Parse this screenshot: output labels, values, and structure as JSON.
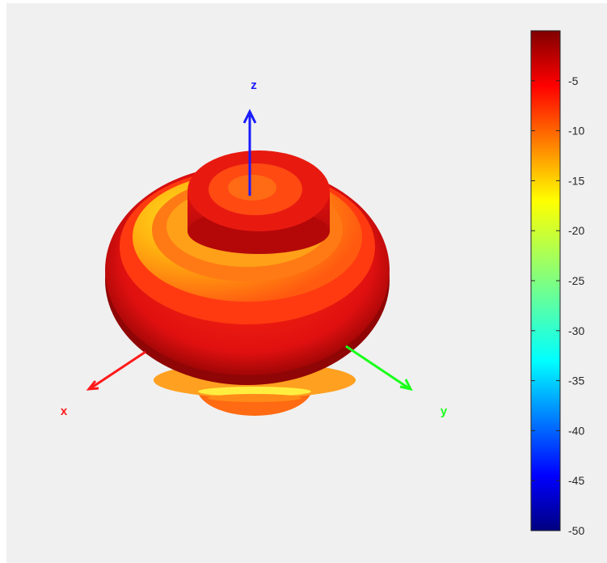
{
  "chart_data": {
    "type": "3d-radiation-pattern-surface",
    "axes": [
      {
        "name": "x",
        "label": "x",
        "color": "#ff1a1a"
      },
      {
        "name": "y",
        "label": "y",
        "color": "#1aff1a"
      },
      {
        "name": "z",
        "label": "z",
        "color": "#1a1aff"
      }
    ],
    "colorbar": {
      "colormap": "jet",
      "range": [
        -50,
        0
      ],
      "ticks": [
        -5,
        -10,
        -15,
        -20,
        -25,
        -30,
        -35,
        -40,
        -45,
        -50
      ],
      "tick_labels": [
        "-5",
        "-10",
        "-15",
        "-20",
        "-25",
        "-30",
        "-35",
        "-40",
        "-45",
        "-50"
      ]
    }
  }
}
